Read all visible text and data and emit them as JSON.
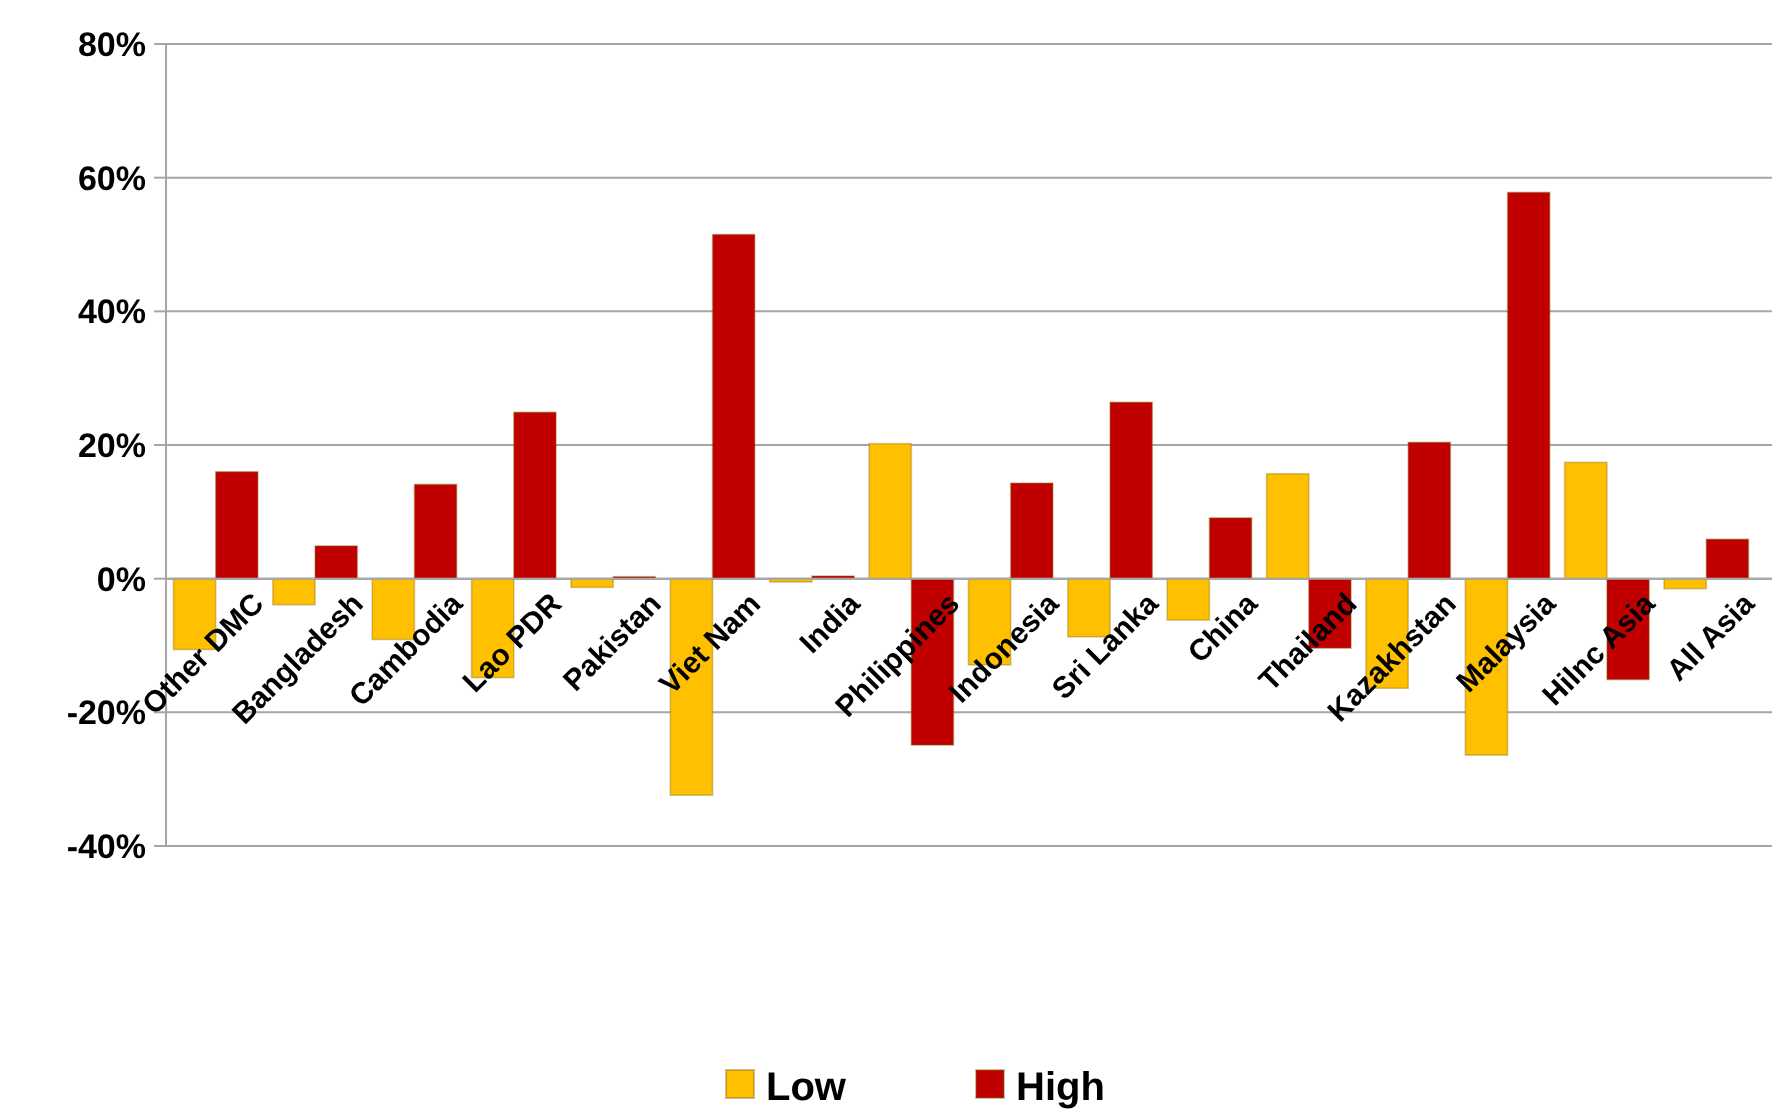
{
  "chart_data": {
    "type": "bar",
    "categories": [
      "Other DMC",
      "Bangladesh",
      "Cambodia",
      "Lao PDR",
      "Pakistan",
      "Viet Nam",
      "India",
      "Philippines",
      "Indonesia",
      "Sri Lanka",
      "China",
      "Thailand",
      "Kazakhstan",
      "Malaysia",
      "Hilnc Asia",
      "All Asia"
    ],
    "series": [
      {
        "name": "Low",
        "color": "#ffc000",
        "values": [
          -10.6,
          -3.9,
          -9.1,
          -14.8,
          -1.3,
          -32.4,
          -0.5,
          20.2,
          -12.9,
          -8.7,
          -6.2,
          15.7,
          -16.4,
          -26.4,
          17.4,
          -1.5
        ]
      },
      {
        "name": "High",
        "color": "#c00000",
        "values": [
          16,
          4.9,
          14.1,
          24.9,
          0.3,
          51.5,
          0.4,
          -24.9,
          14.3,
          26.4,
          9.1,
          -10.4,
          20.4,
          57.8,
          -15.1,
          5.9
        ]
      }
    ],
    "ylim": [
      -40,
      80
    ],
    "yticks": [
      {
        "value": -40,
        "label": "-40%"
      },
      {
        "value": -20,
        "label": "-20%"
      },
      {
        "value": 0,
        "label": "0%"
      },
      {
        "value": 20,
        "label": "20%"
      },
      {
        "value": 40,
        "label": "40%"
      },
      {
        "value": 60,
        "label": "60%"
      },
      {
        "value": 80,
        "label": "80%"
      }
    ],
    "grid": "y",
    "legend": "bottom"
  }
}
